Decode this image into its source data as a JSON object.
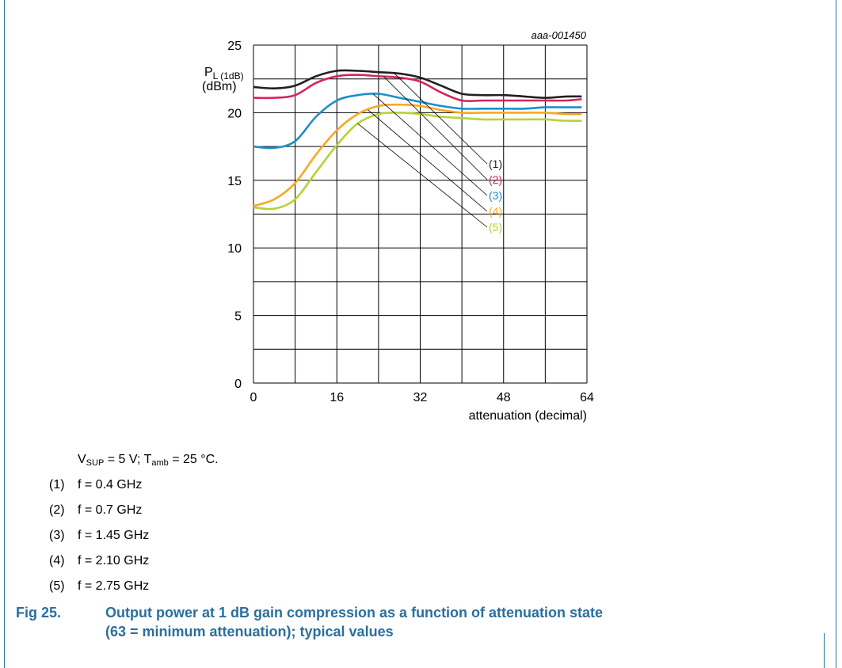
{
  "figure": {
    "label": "Fig 25.",
    "title_line1": "Output power at 1 dB gain compression as a function of attenuation state",
    "title_line2": "(63 = minimum attenuation); typical values"
  },
  "conditions": {
    "vsup_symbol": "V",
    "vsup_sub": "SUP",
    "vsup_value": " = 5 V; ",
    "tamb_symbol": "T",
    "tamb_sub": "amb",
    "tamb_value": " = 25 °C."
  },
  "legend": [
    {
      "num": "(1)",
      "text": "f = 0.4 GHz"
    },
    {
      "num": "(2)",
      "text": "f = 0.7 GHz"
    },
    {
      "num": "(3)",
      "text": "f = 1.45 GHz"
    },
    {
      "num": "(4)",
      "text": "f = 2.10 GHz"
    },
    {
      "num": "(5)",
      "text": "f = 2.75 GHz"
    }
  ],
  "chart_data": {
    "type": "line",
    "code": "aaa-001450",
    "ylabel_main": "P",
    "ylabel_sub": "L (1dB)",
    "ylabel_unit": "(dBm)",
    "xlabel": "attenuation (decimal)",
    "xlim": [
      0,
      64
    ],
    "ylim": [
      0,
      25
    ],
    "xticks": [
      0,
      16,
      32,
      48,
      64
    ],
    "yticks": [
      0,
      5,
      10,
      15,
      20,
      25
    ],
    "grid": true,
    "series": [
      {
        "name": "(1)",
        "color": "#231f20",
        "x": [
          0,
          4,
          8,
          12,
          16,
          20,
          24,
          28,
          32,
          36,
          40,
          44,
          48,
          52,
          56,
          60,
          63
        ],
        "y": [
          21.9,
          21.8,
          22.0,
          22.7,
          23.1,
          23.1,
          23.0,
          22.9,
          22.6,
          22.0,
          21.4,
          21.3,
          21.3,
          21.2,
          21.1,
          21.2,
          21.2
        ]
      },
      {
        "name": "(2)",
        "color": "#d6255a",
        "x": [
          0,
          4,
          8,
          12,
          16,
          20,
          24,
          28,
          32,
          36,
          40,
          44,
          48,
          52,
          56,
          60,
          63
        ],
        "y": [
          21.1,
          21.1,
          21.3,
          22.2,
          22.7,
          22.8,
          22.7,
          22.6,
          22.3,
          21.5,
          20.9,
          20.9,
          20.9,
          20.9,
          20.9,
          20.9,
          21.0
        ]
      },
      {
        "name": "(3)",
        "color": "#1d8fc9",
        "x": [
          0,
          4,
          8,
          12,
          16,
          20,
          24,
          28,
          32,
          36,
          40,
          44,
          48,
          52,
          56,
          60,
          63
        ],
        "y": [
          17.5,
          17.4,
          17.9,
          19.7,
          20.9,
          21.3,
          21.4,
          21.1,
          20.8,
          20.5,
          20.3,
          20.3,
          20.3,
          20.3,
          20.4,
          20.4,
          20.4
        ]
      },
      {
        "name": "(4)",
        "color": "#f7a823",
        "x": [
          0,
          4,
          8,
          12,
          16,
          20,
          24,
          28,
          32,
          36,
          40,
          44,
          48,
          52,
          56,
          60,
          63
        ],
        "y": [
          13.1,
          13.6,
          14.8,
          16.9,
          18.7,
          19.9,
          20.5,
          20.6,
          20.5,
          20.2,
          20.0,
          20.0,
          20.0,
          20.0,
          20.0,
          19.9,
          19.9
        ]
      },
      {
        "name": "(5)",
        "color": "#b7d234",
        "x": [
          0,
          4,
          8,
          12,
          16,
          20,
          24,
          28,
          32,
          36,
          40,
          44,
          48,
          52,
          56,
          60,
          63
        ],
        "y": [
          13.0,
          12.9,
          13.6,
          15.6,
          17.6,
          19.2,
          19.9,
          20.0,
          19.9,
          19.7,
          19.6,
          19.5,
          19.5,
          19.5,
          19.5,
          19.4,
          19.4
        ]
      }
    ]
  }
}
